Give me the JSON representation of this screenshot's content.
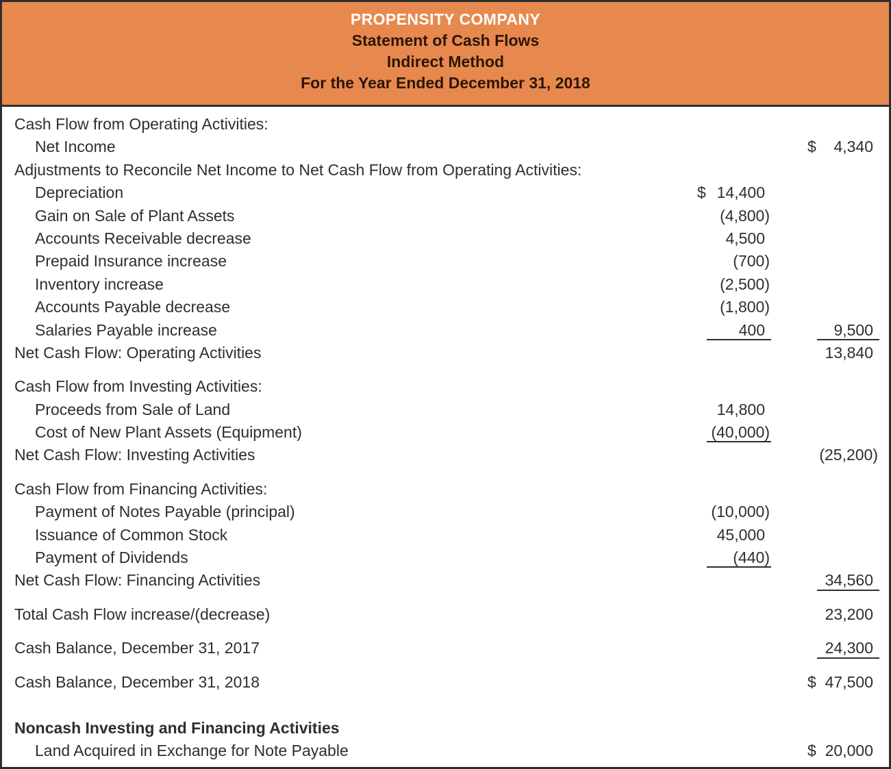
{
  "page": {
    "background_color": "#FFFFFF",
    "border_color": "#2E2E2E",
    "text_color": "#2E2E2E"
  },
  "header": {
    "company": "PROPENSITY COMPANY",
    "statement_title": "Statement of Cash Flows",
    "method": "Indirect Method",
    "period": "For the Year Ended December 31, 2018",
    "background_color": "#E7894F",
    "company_text_color": "#FFFFFF",
    "subtitle_text_color": "#2E1505"
  },
  "statement": {
    "currency_symbol": "$",
    "sections": [
      {
        "id": "operating",
        "rows": [
          {
            "label": "Cash Flow from Operating Activities:",
            "indent": 0
          },
          {
            "label": "Net Income",
            "indent": 1,
            "c2": "4,340",
            "c2d": "$"
          },
          {
            "label": "Adjustments to Reconcile Net Income to Net Cash Flow from Operating Activities:",
            "indent": 0
          },
          {
            "label": "Depreciation",
            "indent": 1,
            "c1": "14,400",
            "c1d": "$"
          },
          {
            "label": "Gain on Sale of Plant Assets",
            "indent": 1,
            "c1": "(4,800)"
          },
          {
            "label": "Accounts Receivable decrease",
            "indent": 1,
            "c1": "4,500"
          },
          {
            "label": "Prepaid Insurance increase",
            "indent": 1,
            "c1": "(700)"
          },
          {
            "label": "Inventory increase",
            "indent": 1,
            "c1": "(2,500)"
          },
          {
            "label": "Accounts Payable decrease",
            "indent": 1,
            "c1": "(1,800)"
          },
          {
            "label": "Salaries Payable increase",
            "indent": 1,
            "c1": "400",
            "c1u": true,
            "c2": "9,500",
            "c2u": true
          },
          {
            "label": "Net Cash Flow: Operating Activities",
            "indent": 0,
            "c2": "13,840"
          }
        ]
      },
      {
        "id": "investing",
        "rows": [
          {
            "label": "Cash Flow from Investing Activities:",
            "indent": 0
          },
          {
            "label": "Proceeds from Sale of Land",
            "indent": 1,
            "c1": "14,800"
          },
          {
            "label": "Cost of New Plant Assets (Equipment)",
            "indent": 1,
            "c1": "(40,000)",
            "c1u": true
          },
          {
            "label": "Net Cash Flow: Investing Activities",
            "indent": 0,
            "c2": "(25,200)"
          }
        ]
      },
      {
        "id": "financing",
        "rows": [
          {
            "label": "Cash Flow from Financing Activities:",
            "indent": 0
          },
          {
            "label": "Payment of Notes Payable (principal)",
            "indent": 1,
            "c1": "(10,000)"
          },
          {
            "label": "Issuance of Common Stock",
            "indent": 1,
            "c1": "45,000"
          },
          {
            "label": "Payment of Dividends",
            "indent": 1,
            "c1": "(440)",
            "c1u": true
          },
          {
            "label": "Net Cash Flow: Financing Activities",
            "indent": 0,
            "c2": "34,560",
            "c2u": true
          }
        ]
      },
      {
        "id": "total",
        "rows": [
          {
            "label": "Total Cash Flow increase/(decrease)",
            "indent": 0,
            "c2": "23,200"
          }
        ]
      },
      {
        "id": "balance-2017",
        "rows": [
          {
            "label": "Cash Balance, December 31, 2017",
            "indent": 0,
            "c2": "24,300",
            "c2u": true
          }
        ]
      },
      {
        "id": "balance-2018",
        "rows": [
          {
            "label": "Cash Balance, December 31, 2018",
            "indent": 0,
            "c2": "47,500",
            "c2d": "$"
          }
        ]
      },
      {
        "id": "noncash",
        "rows": [
          {
            "label": "Noncash Investing and Financing Activities",
            "indent": 0,
            "bold": true
          },
          {
            "label": "Land Acquired in Exchange for Note Payable",
            "indent": 1,
            "c2": "20,000",
            "c2d": "$"
          }
        ]
      }
    ]
  }
}
